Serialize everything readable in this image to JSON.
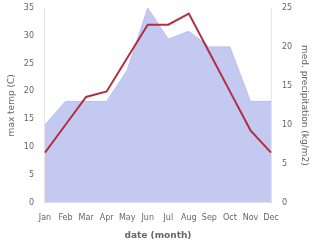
{
  "chart_data": {
    "type": "line",
    "xlabel": "date (month)",
    "ylabel": "max temp (C)",
    "y2label": "med. precipitation (kg/m2)",
    "categories": [
      "Jan",
      "Feb",
      "Mar",
      "Apr",
      "May",
      "Jun",
      "Jul",
      "Aug",
      "Sep",
      "Oct",
      "Nov",
      "Dec"
    ],
    "series": [
      {
        "type": "area",
        "axis": "y2",
        "color": "#b8c0ee",
        "values": [
          10,
          13,
          13,
          13,
          17,
          25,
          21,
          22,
          20,
          20,
          13,
          13
        ]
      },
      {
        "type": "line",
        "color": "#b03040",
        "values": [
          9,
          14,
          19,
          20,
          26,
          32,
          32,
          34,
          27,
          20,
          13,
          9
        ]
      }
    ],
    "ylim": [
      0,
      35
    ],
    "yticks": [
      0,
      5,
      10,
      15,
      20,
      25,
      30,
      35
    ],
    "y2lim": [
      0,
      25
    ],
    "y2ticks": [
      0,
      5,
      10,
      15,
      20,
      25
    ],
    "grid": false
  }
}
